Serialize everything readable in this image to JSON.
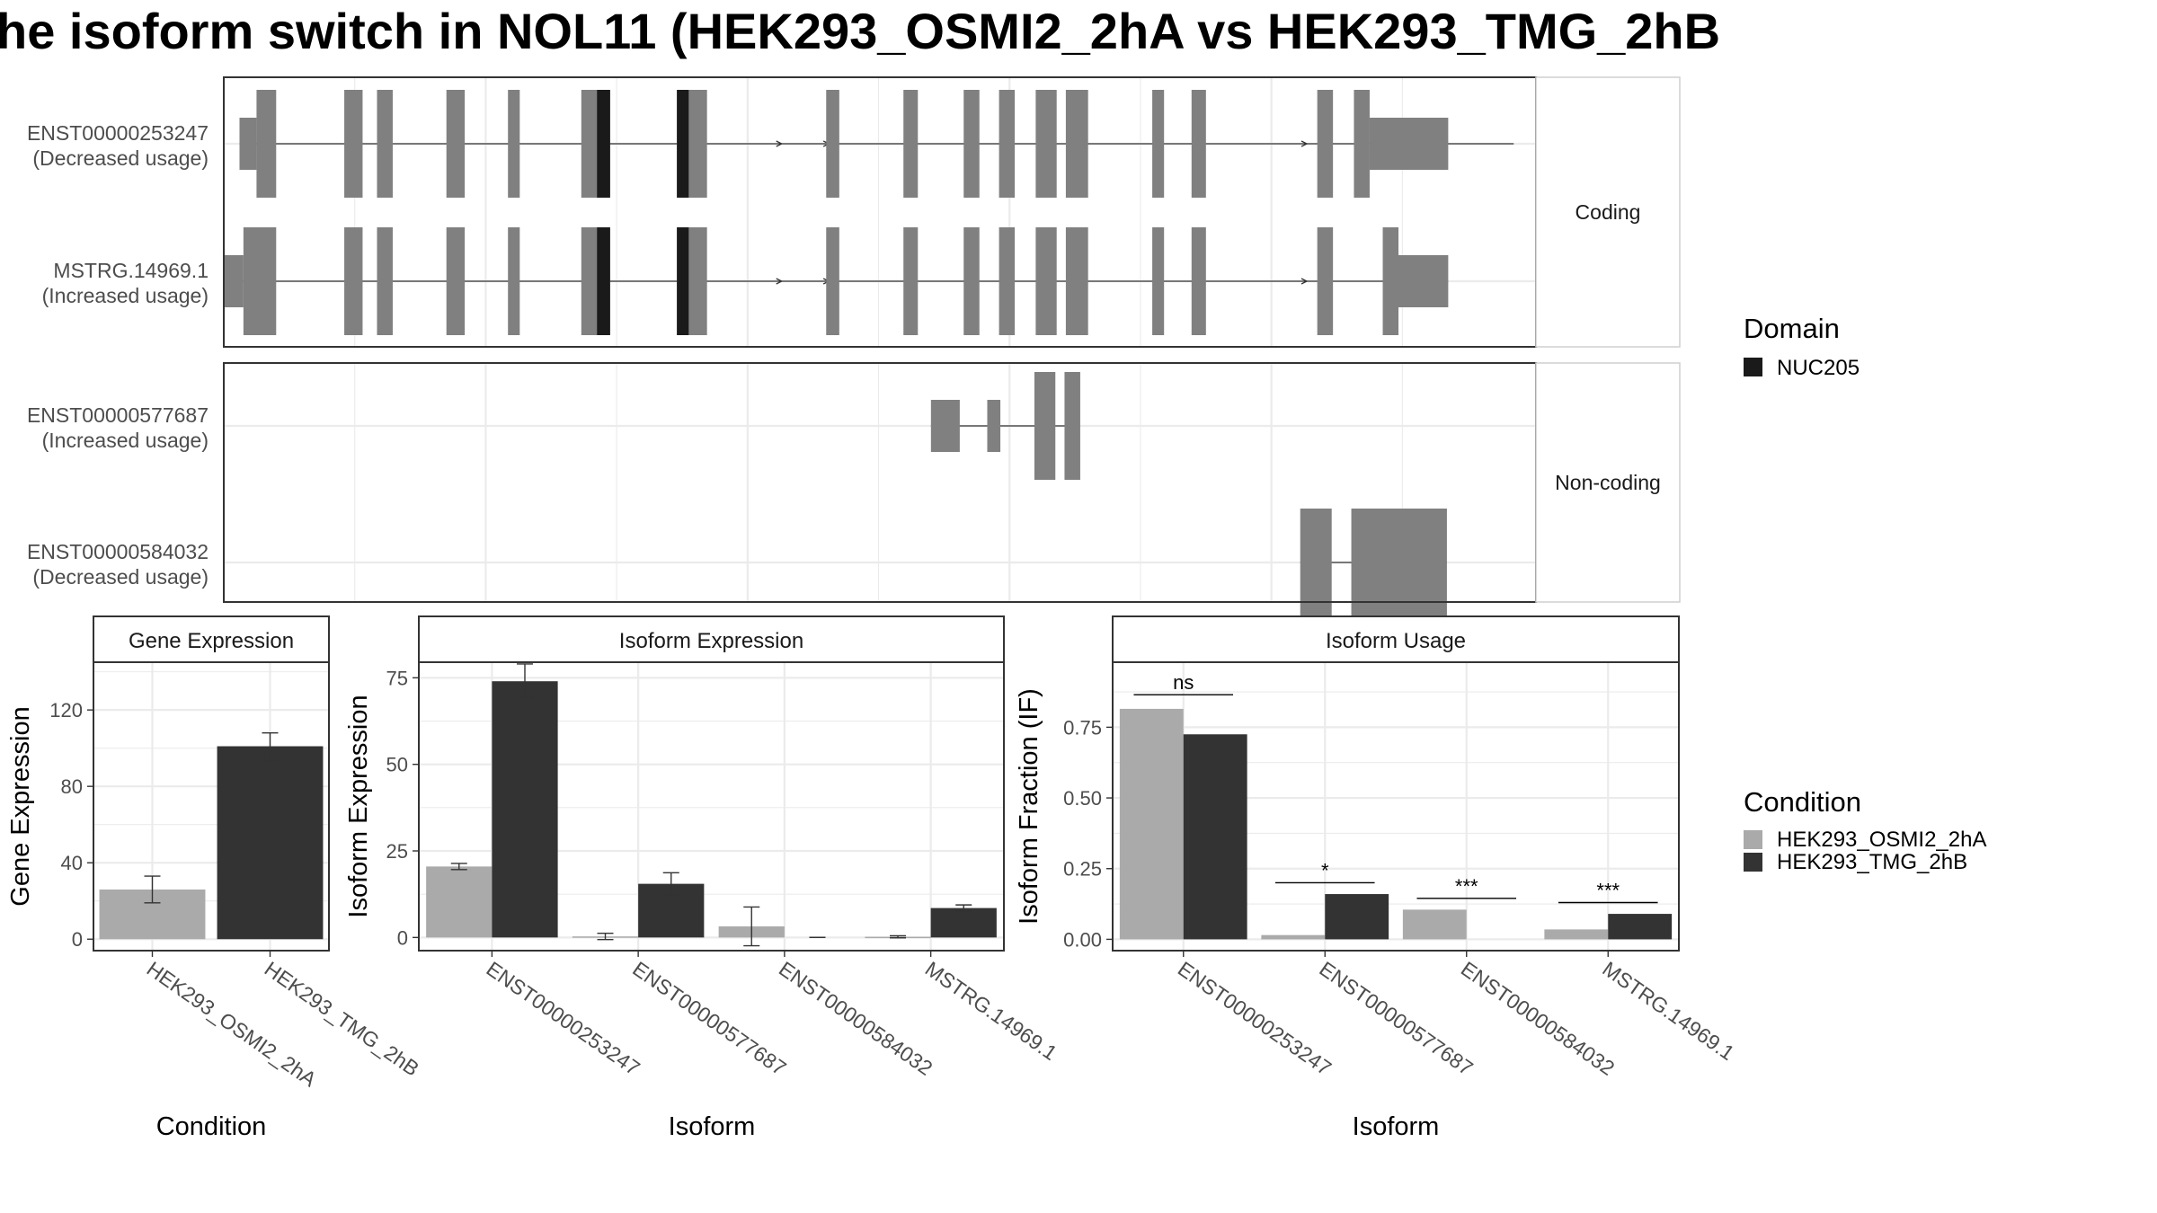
{
  "title": "he isoform switch in NOL11 (HEK293_OSMI2_2hA vs HEK293_TMG_2hB",
  "colors": {
    "exon": "#808080",
    "domain": "#1a1a1a",
    "cond_a": "#aaaaaa",
    "cond_b": "#333333",
    "grid": "#ebebeb",
    "strip_text": "#1a1a1a",
    "axis_text": "#4d4d4d"
  },
  "transcript_plot": {
    "genomic_range": [
      100,
      1102
    ],
    "facets": [
      {
        "name": "Coding",
        "rows": [
          {
            "label": "ENST00000253247",
            "usage": "(Decreased usage)",
            "intron": [
              112,
              1085
            ],
            "exons": [
              [
                112,
                125,
                "h"
              ],
              [
                125,
                140,
                "t"
              ],
              [
                192,
                206,
                "t"
              ],
              [
                217,
                229,
                "t"
              ],
              [
                270,
                284,
                "t"
              ],
              [
                317,
                326,
                "t"
              ],
              [
                373,
                395,
                "t"
              ],
              [
                446,
                469,
                "t"
              ],
              [
                560,
                570,
                "t"
              ],
              [
                619,
                630,
                "t"
              ],
              [
                665,
                677,
                "t"
              ],
              [
                692,
                704,
                "t"
              ],
              [
                720,
                736,
                "t"
              ],
              [
                743,
                760,
                "t"
              ],
              [
                809,
                818,
                "t"
              ],
              [
                839,
                850,
                "t"
              ],
              [
                935,
                947,
                "t"
              ],
              [
                963,
                975,
                "t"
              ],
              [
                975,
                1035,
                "h"
              ]
            ],
            "domains": [
              [
                385,
                395
              ],
              [
                446,
                455
              ]
            ],
            "arrows": [
              455,
              526,
              562,
              927
            ]
          },
          {
            "label": "MSTRG.14969.1",
            "usage": "(Increased usage)",
            "intron": [
              100,
              1035
            ],
            "exons": [
              [
                100,
                115,
                "h"
              ],
              [
                115,
                140,
                "t"
              ],
              [
                192,
                206,
                "t"
              ],
              [
                217,
                229,
                "t"
              ],
              [
                270,
                284,
                "t"
              ],
              [
                317,
                326,
                "t"
              ],
              [
                373,
                395,
                "t"
              ],
              [
                446,
                469,
                "t"
              ],
              [
                560,
                570,
                "t"
              ],
              [
                619,
                630,
                "t"
              ],
              [
                665,
                677,
                "t"
              ],
              [
                692,
                704,
                "t"
              ],
              [
                720,
                736,
                "t"
              ],
              [
                743,
                760,
                "t"
              ],
              [
                809,
                818,
                "t"
              ],
              [
                839,
                850,
                "t"
              ],
              [
                935,
                947,
                "t"
              ],
              [
                985,
                997,
                "t"
              ],
              [
                997,
                1035,
                "h"
              ]
            ],
            "domains": [
              [
                385,
                395
              ],
              [
                446,
                455
              ]
            ],
            "arrows": [
              455,
              526,
              562,
              927
            ]
          }
        ]
      },
      {
        "name": "Non-coding",
        "rows": [
          {
            "label": "ENST00000577687",
            "usage": "(Increased usage)",
            "intron": [
              640,
              746
            ],
            "exons": [
              [
                640,
                662,
                "h"
              ],
              [
                683,
                693,
                "h"
              ],
              [
                719,
                735,
                "t"
              ],
              [
                742,
                754,
                "t"
              ]
            ],
            "domains": [],
            "arrows": []
          },
          {
            "label": "ENST00000584032",
            "usage": "(Decreased usage)",
            "intron": [
              922,
              1034
            ],
            "exons": [
              [
                922,
                946,
                "t"
              ],
              [
                961,
                1034,
                "t"
              ]
            ],
            "domains": [],
            "arrows": []
          }
        ]
      }
    ]
  },
  "legend_domain": {
    "title": "Domain",
    "items": [
      {
        "label": "NUC205",
        "color": "#1a1a1a"
      }
    ]
  },
  "legend_condition": {
    "title": "Condition",
    "items": [
      {
        "label": "HEK293_OSMI2_2hA",
        "color": "#aaaaaa"
      },
      {
        "label": "HEK293_TMG_2hB",
        "color": "#333333"
      }
    ]
  },
  "chart_data": [
    {
      "type": "bar",
      "title": "Gene Expression",
      "xlabel": "Condition",
      "ylabel": "Gene Expression",
      "categories": [
        "HEK293_OSMI2_2hA",
        "HEK293_TMG_2hB"
      ],
      "values": [
        26,
        101
      ],
      "errors": [
        [
          19,
          33
        ],
        [
          94,
          108
        ]
      ],
      "ylim": [
        -6,
        145
      ],
      "yticks": [
        "0",
        "40",
        "80",
        "120"
      ]
    },
    {
      "type": "bar",
      "title": "Isoform Expression",
      "xlabel": "Isoform",
      "ylabel": "Isoform Expression",
      "categories": [
        "ENST00000253247",
        "ENST00000577687",
        "ENST00000584032",
        "MSTRG.14969.1"
      ],
      "series": [
        {
          "name": "HEK293_OSMI2_2hA",
          "values": [
            20.5,
            0.3,
            3.2,
            0.2
          ],
          "errors": [
            [
              19.6,
              21.4
            ],
            [
              -0.6,
              1.2
            ],
            [
              -2.4,
              8.8
            ],
            [
              -0.1,
              0.5
            ]
          ]
        },
        {
          "name": "HEK293_TMG_2hB",
          "values": [
            74,
            15.5,
            0,
            8.5
          ],
          "errors": [
            [
              69,
              79
            ],
            [
              12.3,
              18.7
            ],
            [
              0,
              0
            ],
            [
              7.6,
              9.4
            ]
          ]
        }
      ],
      "ylim": [
        -3.8,
        79.5
      ],
      "yticks": [
        "0",
        "25",
        "50",
        "75"
      ]
    },
    {
      "type": "bar",
      "title": "Isoform Usage",
      "xlabel": "Isoform",
      "ylabel": "Isoform Fraction (IF)",
      "categories": [
        "ENST00000253247",
        "ENST00000577687",
        "ENST00000584032",
        "MSTRG.14969.1"
      ],
      "series": [
        {
          "name": "HEK293_OSMI2_2hA",
          "values": [
            0.815,
            0.015,
            0.105,
            0.035
          ]
        },
        {
          "name": "HEK293_TMG_2hB",
          "values": [
            0.725,
            0.16,
            0.0,
            0.09
          ]
        }
      ],
      "significance": [
        {
          "label": "ns",
          "at": 0.865
        },
        {
          "label": "*",
          "at": 0.2
        },
        {
          "label": "***",
          "at": 0.145
        },
        {
          "label": "***",
          "at": 0.13
        }
      ],
      "ylim": [
        -0.04,
        0.98
      ],
      "yticks": [
        "0.00",
        "0.25",
        "0.50",
        "0.75"
      ]
    }
  ]
}
